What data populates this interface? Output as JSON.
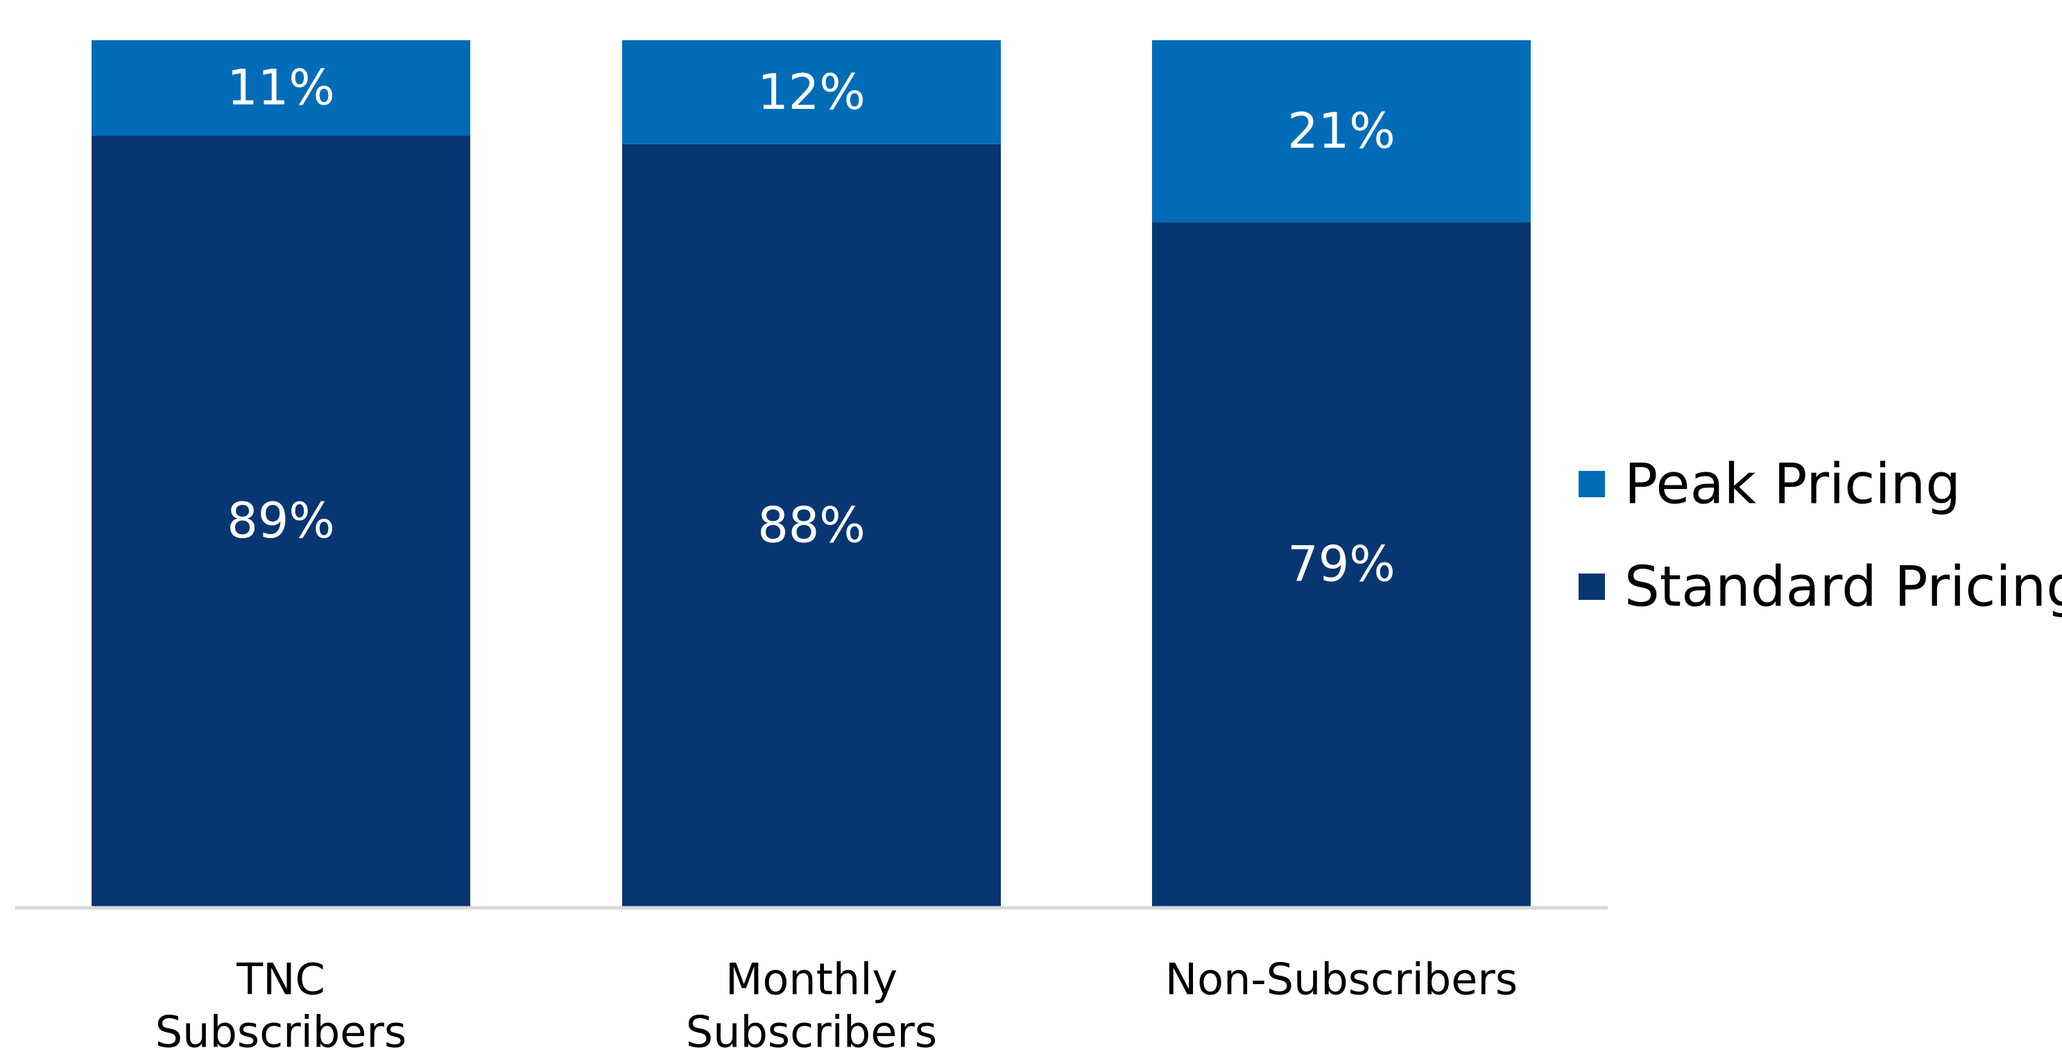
{
  "chart_data": {
    "type": "bar",
    "stacked": true,
    "normalized_percent": true,
    "categories": [
      [
        "TNC",
        "Subscribers"
      ],
      [
        "Monthly",
        "Subscribers"
      ],
      [
        "Non-Subscribers"
      ]
    ],
    "series": [
      {
        "name": "Standard Pricing",
        "color": "#083672",
        "values": [
          89,
          88,
          79
        ],
        "labels": [
          "89%",
          "88%",
          "79%"
        ]
      },
      {
        "name": "Peak Pricing",
        "color": "#006CB8",
        "values": [
          11,
          12,
          21
        ],
        "labels": [
          "11%",
          "12%",
          "21%"
        ]
      }
    ],
    "legend": {
      "position": "right",
      "order": [
        "Peak Pricing",
        "Standard Pricing"
      ]
    },
    "ylim": [
      0,
      100
    ],
    "grid": false,
    "axis_line_color": "#D9D9D9",
    "title": "",
    "xlabel": "",
    "ylabel": ""
  }
}
